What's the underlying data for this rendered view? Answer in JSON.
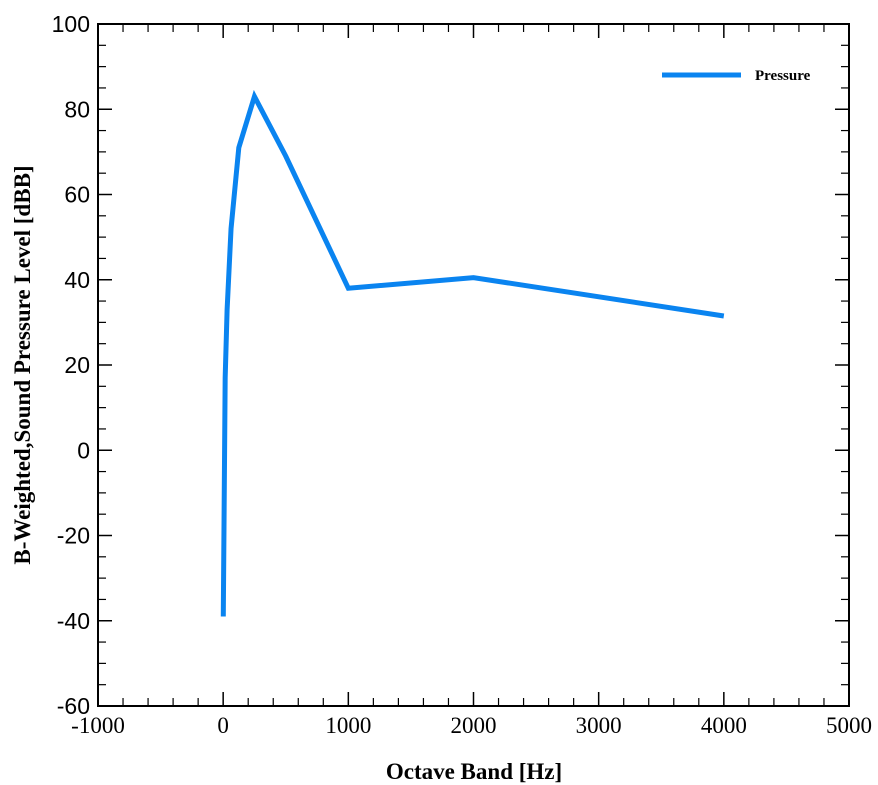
{
  "chart_data": {
    "type": "line",
    "xlabel": "Octave Band [Hz]",
    "ylabel": "B-Weighted,Sound Pressure Level [dBB]",
    "xlim": [
      -1000,
      5000
    ],
    "ylim": [
      -60,
      100
    ],
    "x_major_ticks": [
      -1000,
      0,
      1000,
      2000,
      3000,
      4000,
      5000
    ],
    "y_major_ticks": [
      -60,
      -40,
      -20,
      0,
      20,
      40,
      60,
      80,
      100
    ],
    "x_tick_labels": [
      "-1000",
      "0",
      "1000",
      "2000",
      "3000",
      "4000",
      "5000"
    ],
    "y_tick_labels": [
      "-60",
      "-40",
      "-20",
      "0",
      "20",
      "40",
      "60",
      "80",
      "100"
    ],
    "grid": false,
    "legend_position": "top-right",
    "series": [
      {
        "name": "Pressure",
        "color": "#0a84f0",
        "x": [
          1,
          16,
          31.5,
          63,
          125,
          250,
          500,
          1000,
          2000,
          4000
        ],
        "y": [
          -39,
          17,
          33,
          52,
          71,
          83,
          69,
          38,
          40.5,
          31.5
        ]
      }
    ]
  }
}
